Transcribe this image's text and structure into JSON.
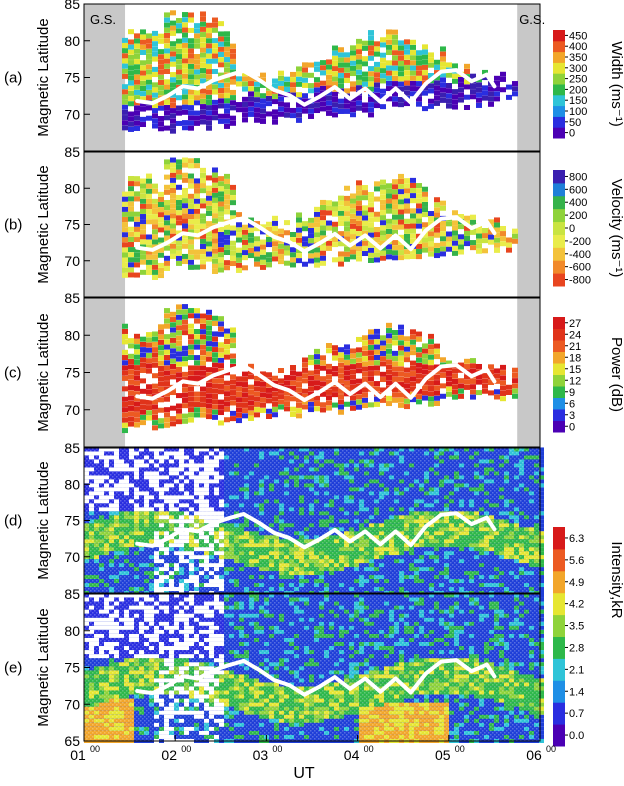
{
  "figure": {
    "xlabel": "UT",
    "x_ticks": [
      {
        "hour": "01",
        "min": "00"
      },
      {
        "hour": "02",
        "min": "00"
      },
      {
        "hour": "03",
        "min": "00"
      },
      {
        "hour": "04",
        "min": "00"
      },
      {
        "hour": "05",
        "min": "00"
      },
      {
        "hour": "06",
        "min": "00"
      }
    ],
    "gs_label": "G.S."
  },
  "chart_data": [
    {
      "type": "heatmap",
      "panel": "(a)",
      "ylabel": "Magnetic Latitude",
      "yticks": [
        "85",
        "80",
        "75",
        "70"
      ],
      "ylim": [
        65,
        85
      ],
      "xlim": [
        "01:00",
        "06:00"
      ],
      "colorbar_title": "Width (ms⁻¹)",
      "colorbar_ticks": [
        "450",
        "400",
        "350",
        "300",
        "250",
        "200",
        "150",
        "100",
        "50",
        "0"
      ],
      "colorbar_colors": [
        "#4b00b4",
        "#2a2ee0",
        "#1f8fe6",
        "#2fc4d8",
        "#2eb84a",
        "#8fd33a",
        "#e6e632",
        "#f2a62a",
        "#ec5a22",
        "#d71a1a"
      ],
      "ground_scatter_shaded": true,
      "boundary_line": {
        "x": [
          "01:35",
          "01:45",
          "01:55",
          "02:05",
          "02:15",
          "02:25",
          "02:35",
          "02:45",
          "02:55",
          "03:05",
          "03:15",
          "03:25",
          "03:35",
          "03:45",
          "03:55",
          "04:05",
          "04:15",
          "04:25",
          "04:35",
          "04:45",
          "04:55",
          "05:05",
          "05:15",
          "05:25",
          "05:30"
        ],
        "y": [
          71.8,
          71.5,
          72.5,
          73.8,
          73.5,
          74.6,
          75.3,
          75.9,
          74.7,
          73.3,
          72.6,
          71.3,
          72.4,
          73.7,
          72.1,
          73.5,
          71.7,
          73.5,
          71.6,
          74.2,
          75.8,
          76.0,
          74.5,
          75.4,
          73.8
        ]
      }
    },
    {
      "type": "heatmap",
      "panel": "(b)",
      "ylabel": "Magnetic Latitude",
      "yticks": [
        "85",
        "80",
        "75",
        "70"
      ],
      "ylim": [
        65,
        85
      ],
      "xlim": [
        "01:00",
        "06:00"
      ],
      "colorbar_title": "Velocity (ms⁻¹)",
      "colorbar_ticks": [
        "800",
        "600",
        "400",
        "200",
        "0",
        "-200",
        "-400",
        "-600",
        "-800"
      ],
      "colorbar_colors": [
        "#e8451f",
        "#f1892a",
        "#f3c23a",
        "#e9ec4a",
        "#c9e441",
        "#8fd33a",
        "#35b24a",
        "#1f7fd8",
        "#3a1fb0"
      ],
      "ground_scatter_shaded": true,
      "boundary_line": {
        "x": [
          "01:35",
          "01:45",
          "01:55",
          "02:05",
          "02:15",
          "02:25",
          "02:35",
          "02:45",
          "02:55",
          "03:05",
          "03:15",
          "03:25",
          "03:35",
          "03:45",
          "03:55",
          "04:05",
          "04:15",
          "04:25",
          "04:35",
          "04:45",
          "04:55",
          "05:05",
          "05:15",
          "05:25",
          "05:30"
        ],
        "y": [
          71.8,
          71.5,
          72.5,
          73.8,
          73.5,
          74.6,
          75.3,
          75.9,
          74.7,
          73.3,
          72.6,
          71.3,
          72.4,
          73.7,
          72.1,
          73.5,
          71.7,
          73.5,
          71.6,
          74.2,
          75.8,
          76.0,
          74.5,
          75.4,
          73.8
        ]
      }
    },
    {
      "type": "heatmap",
      "panel": "(c)",
      "ylabel": "Magnetic Latitude",
      "yticks": [
        "85",
        "80",
        "75",
        "70"
      ],
      "ylim": [
        65,
        85
      ],
      "xlim": [
        "01:00",
        "06:00"
      ],
      "colorbar_title": "Power (dB)",
      "colorbar_ticks": [
        "27",
        "24",
        "21",
        "18",
        "15",
        "12",
        "9",
        "6",
        "3",
        "0"
      ],
      "colorbar_colors": [
        "#4b00b4",
        "#2a2ee0",
        "#1f8fe6",
        "#2eb84a",
        "#8fd33a",
        "#e6e632",
        "#f2a62a",
        "#ec5a22",
        "#e0331a",
        "#d71a1a"
      ],
      "ground_scatter_shaded": true,
      "boundary_line": {
        "x": [
          "01:35",
          "01:45",
          "01:55",
          "02:05",
          "02:15",
          "02:25",
          "02:35",
          "02:45",
          "02:55",
          "03:05",
          "03:15",
          "03:25",
          "03:35",
          "03:45",
          "03:55",
          "04:05",
          "04:15",
          "04:25",
          "04:35",
          "04:45",
          "04:55",
          "05:05",
          "05:15",
          "05:25",
          "05:30"
        ],
        "y": [
          71.8,
          71.5,
          72.5,
          73.8,
          73.5,
          74.6,
          75.3,
          75.9,
          74.7,
          73.3,
          72.6,
          71.3,
          72.4,
          73.7,
          72.1,
          73.5,
          71.7,
          73.5,
          71.6,
          74.2,
          75.8,
          76.0,
          74.5,
          75.4,
          73.8
        ]
      }
    },
    {
      "type": "heatmap",
      "panel": "(d)",
      "ylabel": "Magnetic Latitude",
      "yticks": [
        "85",
        "80",
        "75",
        "70"
      ],
      "ylim": [
        65,
        85
      ],
      "xlim": [
        "01:00",
        "06:00"
      ],
      "colorbar_title": "Intensity,kR",
      "colorbar_ticks": [
        "6.3",
        "5.6",
        "4.9",
        "4.2",
        "3.5",
        "2.8",
        "2.1",
        "1.4",
        "0.7",
        "0.0"
      ],
      "colorbar_colors": [
        "#4b00b4",
        "#2a2ee0",
        "#1f8fe6",
        "#2fc4d8",
        "#2eb84a",
        "#8fd33a",
        "#e6e632",
        "#f2a62a",
        "#ec5a22",
        "#d71a1a"
      ],
      "ground_scatter_shaded": false,
      "boundary_line": {
        "x": [
          "01:35",
          "01:45",
          "01:55",
          "02:05",
          "02:15",
          "02:25",
          "02:35",
          "02:45",
          "02:55",
          "03:05",
          "03:15",
          "03:25",
          "03:35",
          "03:45",
          "03:55",
          "04:05",
          "04:15",
          "04:25",
          "04:35",
          "04:45",
          "04:55",
          "05:05",
          "05:15",
          "05:25",
          "05:30"
        ],
        "y": [
          71.8,
          71.5,
          72.5,
          73.8,
          73.5,
          74.6,
          75.3,
          75.9,
          74.7,
          73.3,
          72.6,
          71.3,
          72.4,
          73.7,
          72.1,
          73.5,
          71.7,
          73.5,
          71.6,
          74.2,
          75.8,
          76.0,
          74.5,
          75.4,
          73.8
        ]
      }
    },
    {
      "type": "heatmap",
      "panel": "(e)",
      "ylabel": "Magnetic Latitude",
      "yticks": [
        "85",
        "80",
        "75",
        "70",
        "65"
      ],
      "ylim": [
        65,
        85
      ],
      "xlim": [
        "01:00",
        "06:00"
      ],
      "colorbar_title": "",
      "colorbar_ticks": [],
      "colorbar_colors": [],
      "ground_scatter_shaded": false,
      "boundary_line": {
        "x": [
          "01:35",
          "01:45",
          "01:55",
          "02:05",
          "02:15",
          "02:25",
          "02:35",
          "02:45",
          "02:55",
          "03:05",
          "03:15",
          "03:25",
          "03:35",
          "03:45",
          "03:55",
          "04:05",
          "04:15",
          "04:25",
          "04:35",
          "04:45",
          "04:55",
          "05:05",
          "05:15",
          "05:25",
          "05:30"
        ],
        "y": [
          71.8,
          71.5,
          72.5,
          73.8,
          73.5,
          74.6,
          75.3,
          75.9,
          74.7,
          73.3,
          72.6,
          71.3,
          72.4,
          73.7,
          72.1,
          73.5,
          71.7,
          73.5,
          71.6,
          74.2,
          75.8,
          76.0,
          74.5,
          75.4,
          73.8
        ]
      }
    }
  ]
}
